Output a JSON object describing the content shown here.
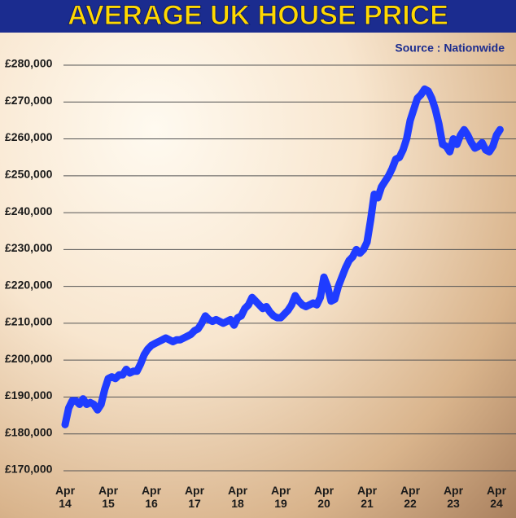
{
  "chart_data": {
    "type": "line",
    "title": "AVERAGE UK HOUSE PRICE",
    "source": "Source : Nationwide",
    "categories": [
      "Apr 14",
      null,
      null,
      null,
      null,
      null,
      null,
      null,
      null,
      null,
      null,
      null,
      "Apr 15",
      null,
      null,
      null,
      null,
      null,
      null,
      null,
      null,
      null,
      null,
      null,
      "Apr 16",
      null,
      null,
      null,
      null,
      null,
      null,
      null,
      null,
      null,
      null,
      null,
      "Apr 17",
      null,
      null,
      null,
      null,
      null,
      null,
      null,
      null,
      null,
      null,
      null,
      "Apr 18",
      null,
      null,
      null,
      null,
      null,
      null,
      null,
      null,
      null,
      null,
      null,
      "Apr 19",
      null,
      null,
      null,
      null,
      null,
      null,
      null,
      null,
      null,
      null,
      null,
      "Apr 20",
      null,
      null,
      null,
      null,
      null,
      null,
      null,
      null,
      null,
      null,
      null,
      "Apr 21",
      null,
      null,
      null,
      null,
      null,
      null,
      null,
      null,
      null,
      null,
      null,
      "Apr 22",
      null,
      null,
      null,
      null,
      null,
      null,
      null,
      null,
      null,
      null,
      null,
      "Apr 23",
      null,
      null,
      null,
      null,
      null,
      null,
      null,
      null,
      null,
      null,
      null,
      "Apr 24",
      null
    ],
    "series": [
      {
        "color": "#1f3cff",
        "values": [
          182500,
          187000,
          189000,
          189000,
          188000,
          189500,
          188000,
          188500,
          188000,
          186500,
          188000,
          192000,
          195000,
          195500,
          195000,
          196000,
          196000,
          197500,
          196500,
          197000,
          197000,
          199000,
          201500,
          203000,
          204000,
          204500,
          205000,
          205500,
          206000,
          205500,
          205000,
          205500,
          205500,
          206000,
          206500,
          207000,
          208000,
          208500,
          210000,
          212000,
          211000,
          210500,
          211000,
          210500,
          210000,
          210500,
          211000,
          209500,
          211500,
          212000,
          214000,
          215000,
          217000,
          216000,
          215000,
          214000,
          214500,
          213000,
          212000,
          211500,
          211500,
          212500,
          213500,
          215000,
          217500,
          216000,
          215000,
          214500,
          215000,
          215500,
          215000,
          217000,
          222500,
          220000,
          216000,
          216500,
          220000,
          222500,
          225000,
          227000,
          228000,
          230000,
          229000,
          230000,
          232000,
          238000,
          245000,
          244000,
          247000,
          248500,
          250000,
          252000,
          254500,
          255000,
          257000,
          260000,
          265000,
          268000,
          271000,
          272000,
          273500,
          273000,
          271000,
          268000,
          264000,
          258500,
          258000,
          256500,
          260000,
          258500,
          261000,
          262500,
          261000,
          259000,
          257500,
          258000,
          259000,
          257000,
          256500,
          258000,
          261000,
          262500
        ]
      }
    ],
    "ylim": [
      170000,
      280000
    ],
    "yticks": [
      {
        "value": 170000,
        "label": "£170,000"
      },
      {
        "value": 180000,
        "label": "£180,000"
      },
      {
        "value": 190000,
        "label": "£190,000"
      },
      {
        "value": 200000,
        "label": "£200,000"
      },
      {
        "value": 210000,
        "label": "£210,000"
      },
      {
        "value": 220000,
        "label": "£220,000"
      },
      {
        "value": 230000,
        "label": "£230,000"
      },
      {
        "value": 240000,
        "label": "£240,000"
      },
      {
        "value": 250000,
        "label": "£250,000"
      },
      {
        "value": 260000,
        "label": "£260,000"
      },
      {
        "value": 270000,
        "label": "£270,000"
      },
      {
        "value": 280000,
        "label": "£280,000"
      }
    ],
    "grid": true
  }
}
